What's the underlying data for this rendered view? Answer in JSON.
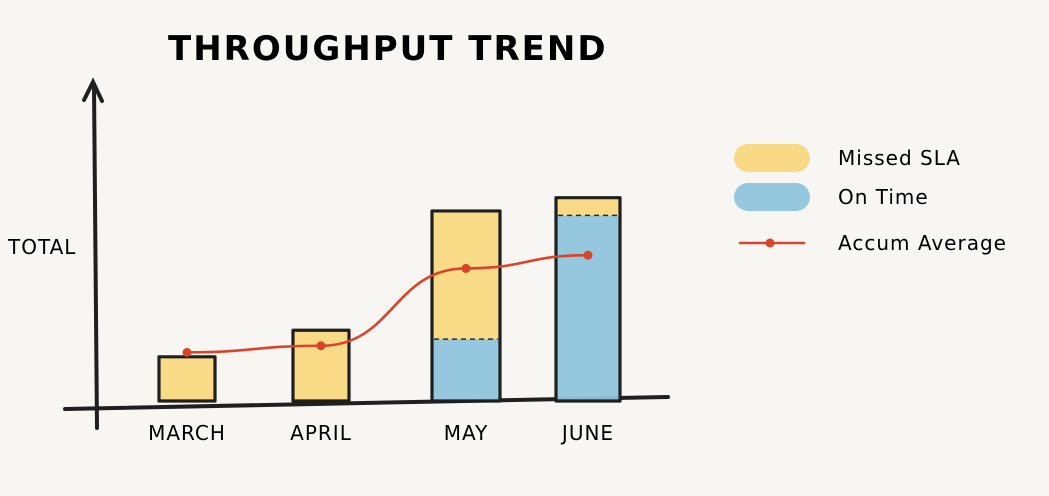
{
  "chart_data": {
    "type": "bar",
    "title": "THROUGHPUT TREND",
    "xlabel": "",
    "ylabel": "TOTAL",
    "categories": [
      "MARCH",
      "APRIL",
      "MAY",
      "JUNE"
    ],
    "ylim": [
      0,
      100
    ],
    "grid": false,
    "legend_position": "right",
    "stacked": true,
    "series": [
      {
        "name": "On Time",
        "kind": "bar",
        "values": [
          0,
          0,
          28,
          84
        ],
        "color": "#8fc5dd"
      },
      {
        "name": "Missed SLA",
        "kind": "bar",
        "values": [
          20,
          32,
          58,
          8
        ],
        "color": "#f8d77e"
      },
      {
        "name": "Accum Average",
        "kind": "line",
        "values": [
          22,
          25,
          60,
          66
        ],
        "color": "#d9442a"
      }
    ]
  }
}
